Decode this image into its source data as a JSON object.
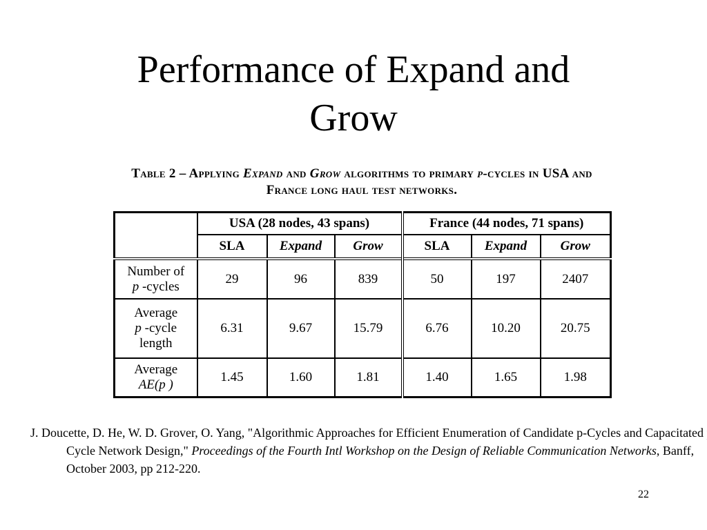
{
  "slide": {
    "title_line1": "Performance of Expand and",
    "title_line2": "Grow",
    "page_number": "22"
  },
  "table": {
    "caption": {
      "part1": "Table 2 – Applying ",
      "expand": "Expand",
      "part2": " and ",
      "grow": "Grow",
      "part3": " algorithms to primary ",
      "p": "p",
      "part4": "-cycles in USA and France long haul test networks."
    },
    "groups": [
      {
        "label": "USA  (28 nodes, 43 spans)"
      },
      {
        "label": "France (44 nodes, 71 spans)"
      }
    ],
    "subheaders": [
      "SLA",
      "Expand",
      "Grow",
      "SLA",
      "Expand",
      "Grow"
    ],
    "rows": [
      {
        "label_line1": "Number of",
        "label_p": "p",
        "label_line2": " -cycles",
        "values": [
          "29",
          "96",
          "839",
          "50",
          "197",
          "2407"
        ]
      },
      {
        "label_line1": "Average",
        "label_p": "p",
        "label_line2": " -cycle",
        "label_line3": "length",
        "values": [
          "6.31",
          "9.67",
          "15.79",
          "6.76",
          "10.20",
          "20.75"
        ]
      },
      {
        "label_line1": "Average",
        "label_ae": "AE(p )",
        "values": [
          "1.45",
          "1.60",
          "1.81",
          "1.40",
          "1.65",
          "1.98"
        ]
      }
    ]
  },
  "reference": {
    "authors_title": "J. Doucette, D. He, W. D. Grover, O. Yang, \"Algorithmic Approaches for Efficient Enumeration of Candidate p-Cycles and Capacitated p-Cycle Network Design,\" ",
    "venue": "Proceedings of the Fourth Intl Workshop on the Design of Reliable Communication Networks",
    "details": ", Banff, October 2003, pp 212-220."
  }
}
